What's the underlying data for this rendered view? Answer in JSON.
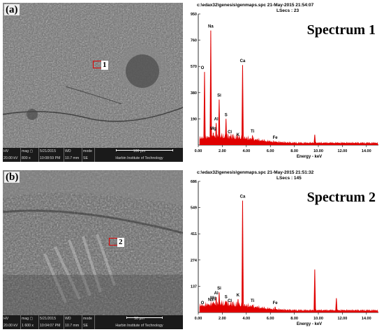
{
  "panels": [
    {
      "letter": "(a)",
      "region_label": "1",
      "info": {
        "hv_label": "HV",
        "hv_value": "20.00 kV",
        "mag_label": "mag ▢",
        "mag_value": "800 x",
        "date_label": "☐",
        "date_value": "5/21/2015",
        "time_value": "10:08:59 PM",
        "wd_label": "WD",
        "wd_value": "10.7 mm",
        "mode_label": "mode",
        "mode_value": "SE",
        "scale_label": "100 μm",
        "institution": "Harbin Institute of Technology"
      },
      "spectrum": {
        "header1": "c:\\edax32\\genesis\\genmaps.spc  21-May-2015 21:54:07",
        "header2": "LSecs : 23",
        "title": "Spectrum 1",
        "y_ticks": [
          "950",
          "760",
          "570",
          "380",
          "190"
        ],
        "x_ticks": [
          "0.00",
          "2.00",
          "4.00",
          "6.00",
          "8.00",
          "10.00",
          "12.00",
          "14.00"
        ],
        "x_axis_label": "Energy - keV",
        "peak_labels": [
          "Na",
          "O",
          "Ca",
          "Si",
          "S",
          "Al",
          "Mg",
          "Cl",
          "K",
          "Ti",
          "Fe"
        ]
      }
    },
    {
      "letter": "(b)",
      "region_label": "2",
      "info": {
        "hv_label": "HV",
        "hv_value": "20.00 kV",
        "mag_label": "mag ▢",
        "mag_value": "1 600 x",
        "date_label": "☐",
        "date_value": "5/21/2015",
        "time_value": "10:04:07 PM",
        "wd_label": "WD",
        "wd_value": "10.7 mm",
        "mode_label": "mode",
        "mode_value": "SE",
        "scale_label": "50 μm",
        "institution": "Harbin Institute of Technology"
      },
      "spectrum": {
        "header1": "c:\\edax32\\genesis\\genmaps.spc  21-May-2015 21:51:32",
        "header2": "LSecs : 145",
        "title": "Spectrum 2",
        "y_ticks": [
          "686",
          "549",
          "411",
          "274",
          "137"
        ],
        "x_ticks": [
          "0.00",
          "2.00",
          "4.00",
          "6.00",
          "8.00",
          "10.00",
          "12.00",
          "14.00"
        ],
        "x_axis_label": "Energy - keV",
        "peak_labels": [
          "Ca",
          "Si",
          "Al",
          "Mg",
          "Na",
          "S",
          "O",
          "Cl",
          "K",
          "Ti",
          "Fe"
        ]
      }
    }
  ],
  "colors": {
    "spectrum_fill": "#e00000",
    "roi_box": "#e00000",
    "info_bar": "#1a1a1a"
  },
  "chart_data": [
    {
      "type": "area",
      "title": "Spectrum 1",
      "xlabel": "Energy - keV",
      "xlim": [
        0,
        15
      ],
      "ylim": [
        0,
        950
      ],
      "peaks": [
        {
          "label": "O",
          "x": 0.52,
          "y": 530
        },
        {
          "label": "Na",
          "x": 1.04,
          "y": 830
        },
        {
          "label": "Mg",
          "x": 1.25,
          "y": 90
        },
        {
          "label": "Al",
          "x": 1.49,
          "y": 160
        },
        {
          "label": "Si",
          "x": 1.74,
          "y": 330
        },
        {
          "label": "S",
          "x": 2.31,
          "y": 190
        },
        {
          "label": "Cl",
          "x": 2.62,
          "y": 65
        },
        {
          "label": "K",
          "x": 3.31,
          "y": 45
        },
        {
          "label": "Ca",
          "x": 3.69,
          "y": 580
        },
        {
          "label": "Ti",
          "x": 4.51,
          "y": 70
        },
        {
          "label": "Fe",
          "x": 6.4,
          "y": 25
        },
        {
          "label": "",
          "x": 9.7,
          "y": 75
        }
      ]
    },
    {
      "type": "area",
      "title": "Spectrum 2",
      "xlabel": "Energy - keV",
      "xlim": [
        0,
        15
      ],
      "ylim": [
        0,
        686
      ],
      "peaks": [
        {
          "label": "O",
          "x": 0.52,
          "y": 30
        },
        {
          "label": "Na",
          "x": 1.04,
          "y": 45
        },
        {
          "label": "Mg",
          "x": 1.25,
          "y": 55
        },
        {
          "label": "Al",
          "x": 1.49,
          "y": 80
        },
        {
          "label": "Si",
          "x": 1.74,
          "y": 105
        },
        {
          "label": "S",
          "x": 2.31,
          "y": 60
        },
        {
          "label": "Cl",
          "x": 2.62,
          "y": 40
        },
        {
          "label": "K",
          "x": 3.31,
          "y": 70
        },
        {
          "label": "Ca",
          "x": 3.69,
          "y": 585
        },
        {
          "label": "Ti",
          "x": 4.51,
          "y": 40
        },
        {
          "label": "Fe",
          "x": 6.4,
          "y": 30
        },
        {
          "label": "",
          "x": 9.7,
          "y": 225
        },
        {
          "label": "",
          "x": 11.5,
          "y": 75
        }
      ]
    }
  ]
}
